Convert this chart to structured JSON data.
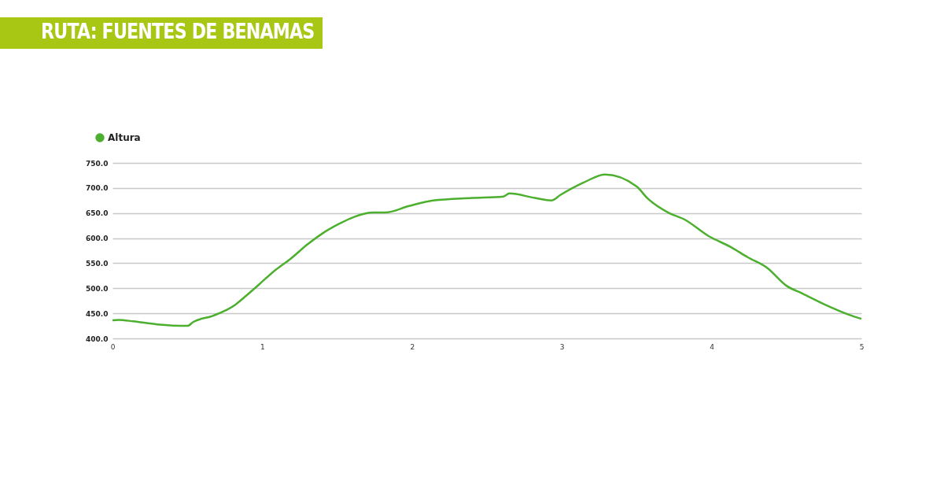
{
  "chart_data": {
    "type": "line",
    "title": "RUTA: FUENTES DE BENAMAS",
    "x": [
      0,
      0.04,
      0.14,
      0.3,
      0.5,
      0.54,
      0.67,
      0.82,
      0.88,
      0.98,
      1.09,
      1.19,
      1.3,
      1.4,
      1.51,
      1.61,
      1.74,
      1.82,
      1.98,
      2.14,
      2.4,
      2.61,
      2.65,
      2.82,
      2.93,
      2.99,
      3.14,
      3.29,
      3.5,
      3.57,
      3.71,
      3.82,
      3.98,
      4.13,
      4.24,
      4.37,
      4.5,
      4.61,
      4.76,
      4.92,
      5
    ],
    "series": [
      {
        "name": "Altura",
        "color": "#4caf2e",
        "values": [
          436,
          437,
          434,
          428,
          425,
          433,
          445,
          467,
          482,
          508,
          537,
          559,
          587,
          609,
          628,
          642,
          651,
          651,
          664,
          675,
          680,
          683,
          689,
          680,
          675,
          686,
          710,
          727,
          703,
          680,
          651,
          637,
          604,
          582,
          562,
          541,
          505,
          489,
          467,
          447,
          439
        ]
      }
    ],
    "xlim": [
      0,
      5
    ],
    "xticks": [
      0,
      1,
      2,
      3,
      4,
      5
    ],
    "ylim": [
      400,
      750
    ],
    "yticks": [
      {
        "value": 400,
        "label": "400.0"
      },
      {
        "value": 450,
        "label": "450.0"
      },
      {
        "value": 500,
        "label": "500.0"
      },
      {
        "value": 550,
        "label": "550.0"
      },
      {
        "value": 600,
        "label": "600.0"
      },
      {
        "value": 650,
        "label": "650.0"
      },
      {
        "value": 700,
        "label": "700.0"
      },
      {
        "value": 750,
        "label": "750.0"
      }
    ],
    "grid": "y",
    "legend": "top left",
    "marker": "none",
    "line_style": "solid"
  }
}
